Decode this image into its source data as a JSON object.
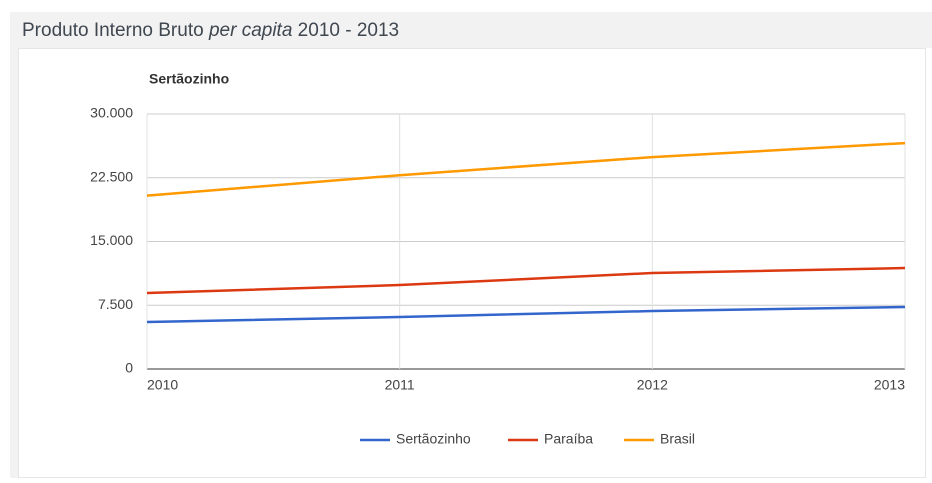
{
  "chart_data": {
    "type": "line",
    "title_parts": [
      "Produto Interno Bruto ",
      "per capita",
      " 2010 - 2013"
    ],
    "subtitle": "Sertãozinho",
    "x": [
      2010,
      2011,
      2012,
      2013
    ],
    "xlim": [
      2010,
      2013
    ],
    "xticks": [
      2010,
      2011,
      2012,
      2013
    ],
    "ylim": [
      0,
      30000
    ],
    "yticks": [
      0,
      {
        "value": 7500,
        "label": "7.500"
      },
      {
        "value": 15000,
        "label": "15.000"
      },
      {
        "value": 22500,
        "label": "22.500"
      },
      {
        "value": 30000,
        "label": "30.000"
      }
    ],
    "grid": true,
    "legend": "bottom",
    "series": [
      {
        "name": "Sertãozinho",
        "color": "#3366cc",
        "values": [
          5530,
          6120,
          6820,
          7290
        ]
      },
      {
        "name": "Paraíba",
        "color": "#dc3912",
        "values": [
          8940,
          9880,
          11290,
          11880
        ]
      },
      {
        "name": "Brasil",
        "color": "#ff9900",
        "values": [
          20400,
          22800,
          24930,
          26580
        ]
      }
    ]
  }
}
